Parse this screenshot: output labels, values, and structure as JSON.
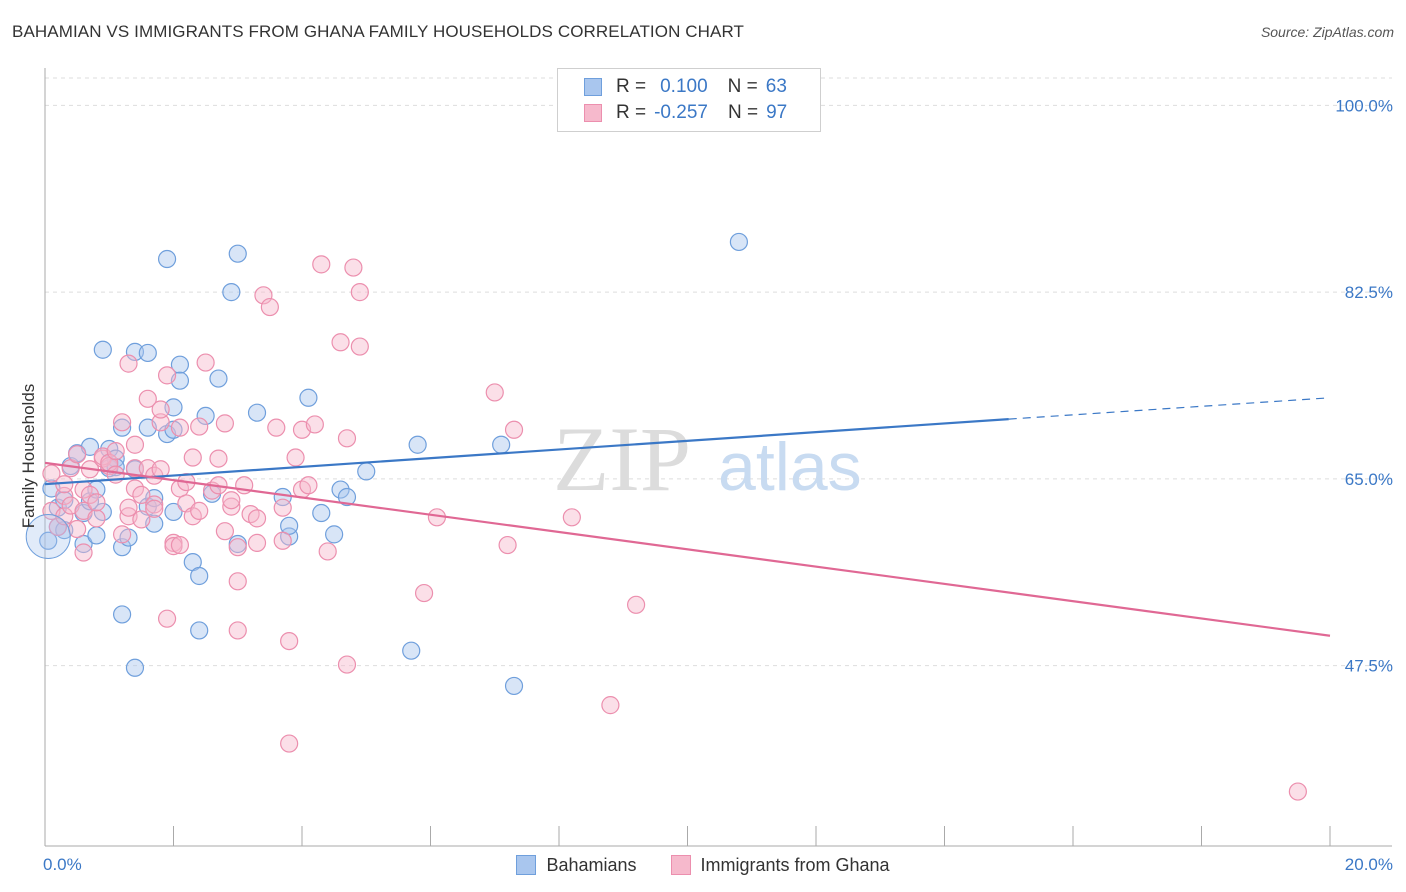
{
  "header": {
    "title": "BAHAMIAN VS IMMIGRANTS FROM GHANA FAMILY HOUSEHOLDS CORRELATION CHART",
    "source": "Source: ZipAtlas.com"
  },
  "watermark": {
    "zip": "ZIP",
    "atlas": "atlas"
  },
  "legend": {
    "rows": [
      {
        "r_label": "R =",
        "r_value": "0.100",
        "n_label": "N =",
        "n_value": "63"
      },
      {
        "r_label": "R =",
        "r_value": "-0.257",
        "n_label": "N =",
        "n_value": "97"
      }
    ]
  },
  "bottom_legend": {
    "series1": "Bahamians",
    "series2": "Immigrants from Ghana"
  },
  "colors": {
    "blue_fill": "#a9c6ee",
    "blue_stroke": "#6f9fdc",
    "blue_line": "#3b78c6",
    "pink_fill": "#f6b9cc",
    "pink_stroke": "#ec8fae",
    "pink_line": "#e06894",
    "axis_text": "#3b78c6",
    "grid": "#dddddd"
  },
  "chart_data": {
    "type": "scatter",
    "title": "BAHAMIAN VS IMMIGRANTS FROM GHANA FAMILY HOUSEHOLDS CORRELATION CHART",
    "xlabel": "",
    "ylabel": "Family Households",
    "xlim": [
      0,
      20
    ],
    "ylim": [
      30.6,
      103.5
    ],
    "x_tick_labels": [
      "0.0%",
      "20.0%"
    ],
    "y_ticks": [
      47.5,
      65.0,
      82.5,
      100.0
    ],
    "y_tick_labels": [
      "47.5%",
      "65.0%",
      "82.5%",
      "100.0%"
    ],
    "grid": true,
    "legend_position": "top-center",
    "series": [
      {
        "name": "Bahamians",
        "r": 0.1,
        "n": 63,
        "trend": {
          "x_start": 0.0,
          "y_start": 64.5,
          "x_solid_end": 15.0,
          "y_solid_end": 70.6,
          "x_end": 20.0,
          "y_end": 72.6
        },
        "points": [
          [
            0.1,
            64.1
          ],
          [
            0.2,
            62.3
          ],
          [
            0.2,
            60.5
          ],
          [
            0.3,
            60.2
          ],
          [
            0.4,
            66.2
          ],
          [
            0.5,
            67.4
          ],
          [
            0.6,
            58.9
          ],
          [
            0.6,
            61.8
          ],
          [
            0.7,
            68.0
          ],
          [
            0.7,
            62.9
          ],
          [
            0.8,
            64.0
          ],
          [
            0.8,
            59.7
          ],
          [
            0.9,
            61.9
          ],
          [
            0.9,
            77.1
          ],
          [
            1.0,
            66.0
          ],
          [
            1.0,
            67.8
          ],
          [
            1.1,
            66.9
          ],
          [
            1.2,
            58.6
          ],
          [
            1.2,
            52.3
          ],
          [
            1.2,
            69.8
          ],
          [
            1.3,
            59.5
          ],
          [
            1.4,
            65.9
          ],
          [
            1.4,
            47.3
          ],
          [
            1.4,
            76.9
          ],
          [
            1.6,
            69.8
          ],
          [
            1.6,
            76.8
          ],
          [
            1.6,
            62.4
          ],
          [
            1.7,
            63.2
          ],
          [
            1.7,
            60.8
          ],
          [
            1.9,
            69.2
          ],
          [
            1.9,
            85.6
          ],
          [
            2.0,
            71.7
          ],
          [
            2.0,
            61.9
          ],
          [
            2.0,
            69.6
          ],
          [
            2.1,
            75.7
          ],
          [
            2.1,
            74.2
          ],
          [
            2.3,
            57.2
          ],
          [
            2.4,
            55.9
          ],
          [
            2.4,
            50.8
          ],
          [
            2.5,
            70.9
          ],
          [
            2.6,
            63.6
          ],
          [
            2.7,
            74.4
          ],
          [
            2.9,
            82.5
          ],
          [
            3.0,
            86.1
          ],
          [
            3.0,
            58.9
          ],
          [
            3.3,
            71.2
          ],
          [
            3.7,
            63.3
          ],
          [
            3.8,
            59.6
          ],
          [
            3.8,
            60.6
          ],
          [
            4.1,
            72.6
          ],
          [
            4.3,
            61.8
          ],
          [
            4.5,
            59.8
          ],
          [
            4.6,
            64.0
          ],
          [
            4.7,
            63.3
          ],
          [
            5.0,
            65.7
          ],
          [
            5.7,
            48.9
          ],
          [
            5.8,
            68.2
          ],
          [
            7.1,
            68.2
          ],
          [
            7.3,
            45.6
          ],
          [
            10.8,
            87.2
          ],
          [
            0.05,
            59.2
          ],
          [
            0.3,
            63.0
          ],
          [
            1.1,
            66.1
          ]
        ]
      },
      {
        "name": "Immigrants from Ghana",
        "r": -0.257,
        "n": 97,
        "trend": {
          "x_start": 0.0,
          "y_start": 66.5,
          "x_end": 20.0,
          "y_end": 50.3
        },
        "points": [
          [
            0.1,
            62.0
          ],
          [
            0.1,
            65.5
          ],
          [
            0.2,
            60.5
          ],
          [
            0.3,
            61.5
          ],
          [
            0.3,
            63.4
          ],
          [
            0.3,
            64.5
          ],
          [
            0.4,
            62.5
          ],
          [
            0.4,
            66.0
          ],
          [
            0.5,
            60.3
          ],
          [
            0.5,
            67.3
          ],
          [
            0.6,
            64.0
          ],
          [
            0.6,
            62.0
          ],
          [
            0.6,
            58.1
          ],
          [
            0.7,
            65.9
          ],
          [
            0.7,
            63.5
          ],
          [
            0.8,
            61.3
          ],
          [
            0.8,
            62.8
          ],
          [
            0.9,
            66.9
          ],
          [
            0.9,
            67.1
          ],
          [
            1.0,
            66.2
          ],
          [
            1.0,
            66.5
          ],
          [
            1.1,
            67.6
          ],
          [
            1.1,
            65.4
          ],
          [
            1.2,
            70.3
          ],
          [
            1.2,
            59.8
          ],
          [
            1.3,
            61.5
          ],
          [
            1.3,
            62.3
          ],
          [
            1.3,
            75.8
          ],
          [
            1.4,
            68.2
          ],
          [
            1.4,
            64.1
          ],
          [
            1.4,
            66.0
          ],
          [
            1.5,
            63.5
          ],
          [
            1.5,
            61.2
          ],
          [
            1.6,
            66.0
          ],
          [
            1.6,
            72.5
          ],
          [
            1.7,
            62.6
          ],
          [
            1.7,
            62.2
          ],
          [
            1.7,
            65.3
          ],
          [
            1.8,
            70.3
          ],
          [
            1.8,
            71.5
          ],
          [
            1.8,
            65.9
          ],
          [
            1.9,
            51.9
          ],
          [
            1.9,
            74.7
          ],
          [
            2.0,
            59.0
          ],
          [
            2.0,
            58.7
          ],
          [
            2.1,
            64.1
          ],
          [
            2.1,
            58.8
          ],
          [
            2.1,
            69.8
          ],
          [
            2.2,
            62.7
          ],
          [
            2.2,
            64.7
          ],
          [
            2.3,
            61.5
          ],
          [
            2.3,
            67.0
          ],
          [
            2.4,
            62.0
          ],
          [
            2.4,
            69.9
          ],
          [
            2.5,
            75.9
          ],
          [
            2.6,
            63.9
          ],
          [
            2.7,
            64.4
          ],
          [
            2.7,
            66.9
          ],
          [
            2.8,
            70.2
          ],
          [
            2.8,
            60.1
          ],
          [
            2.9,
            62.4
          ],
          [
            2.9,
            63.0
          ],
          [
            3.0,
            58.6
          ],
          [
            3.0,
            50.8
          ],
          [
            3.0,
            55.4
          ],
          [
            3.1,
            64.4
          ],
          [
            3.2,
            61.7
          ],
          [
            3.3,
            61.3
          ],
          [
            3.3,
            59.0
          ],
          [
            3.4,
            82.2
          ],
          [
            3.5,
            81.1
          ],
          [
            3.6,
            69.8
          ],
          [
            3.7,
            62.3
          ],
          [
            3.7,
            59.2
          ],
          [
            3.8,
            49.8
          ],
          [
            3.8,
            40.2
          ],
          [
            3.9,
            67.0
          ],
          [
            4.0,
            69.6
          ],
          [
            4.0,
            64.0
          ],
          [
            4.1,
            64.4
          ],
          [
            4.2,
            70.1
          ],
          [
            4.3,
            85.1
          ],
          [
            4.4,
            58.2
          ],
          [
            4.6,
            77.8
          ],
          [
            4.7,
            68.8
          ],
          [
            4.7,
            47.6
          ],
          [
            4.8,
            84.8
          ],
          [
            4.9,
            77.4
          ],
          [
            4.9,
            82.5
          ],
          [
            5.9,
            54.3
          ],
          [
            6.1,
            61.4
          ],
          [
            7.0,
            73.1
          ],
          [
            7.2,
            58.8
          ],
          [
            7.3,
            69.6
          ],
          [
            8.2,
            61.4
          ],
          [
            8.8,
            43.8
          ],
          [
            9.2,
            53.2
          ]
        ],
        "outliers": [
          [
            19.5,
            35.7
          ]
        ]
      }
    ]
  }
}
